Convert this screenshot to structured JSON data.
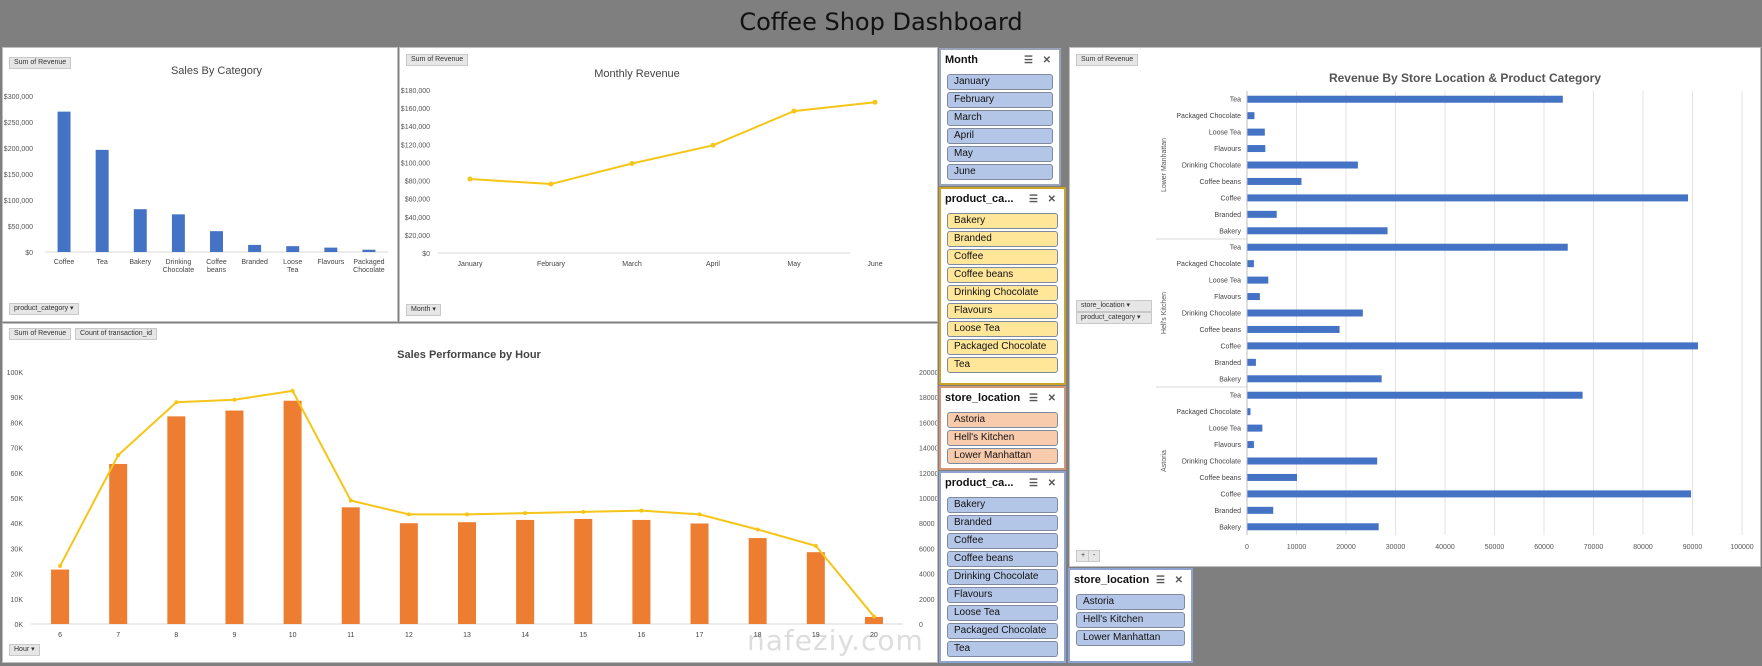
{
  "dashboard": {
    "title": "Coffee Shop Dashboard"
  },
  "colors": {
    "blue_bar": "#4472c4",
    "orange_bar": "#ed7d31",
    "line": "#f5c518",
    "slicer_blue": "#b4c6e7",
    "slicer_yellow": "#ffe699",
    "slicer_orange": "#f8cbad"
  },
  "sales_by_category": {
    "field_button": "Sum of Revenue",
    "axis_button": "product_category",
    "chart_data": {
      "type": "bar",
      "title": "Sales By Category",
      "categories": [
        "Coffee",
        "Tea",
        "Bakery",
        "Drinking Chocolate",
        "Coffee beans",
        "Branded",
        "Loose Tea",
        "Flavours",
        "Packaged Chocolate"
      ],
      "values": [
        269952,
        196406,
        82316,
        72417,
        40085,
        13607,
        11213,
        8409,
        4408
      ],
      "ylim": [
        0,
        300000
      ],
      "yticks": [
        "$0",
        "$50,000",
        "$100,000",
        "$150,000",
        "$200,000",
        "$250,000",
        "$300,000"
      ]
    }
  },
  "monthly_revenue": {
    "field_button": "Sum of Revenue",
    "axis_button": "Month",
    "chart_data": {
      "type": "line",
      "title": "Monthly Revenue",
      "categories": [
        "January",
        "February",
        "March",
        "April",
        "May",
        "June"
      ],
      "values": [
        81678,
        76145,
        98835,
        118941,
        156728,
        166486
      ],
      "ylim": [
        0,
        180000
      ],
      "yticks": [
        "$0",
        "$20,000",
        "$40,000",
        "$60,000",
        "$80,000",
        "$100,000",
        "$120,000",
        "$140,000",
        "$160,000",
        "$180,000"
      ]
    }
  },
  "sales_by_hour": {
    "field_buttons": [
      "Sum of Revenue",
      "Count of transaction_id"
    ],
    "axis_button": "Hour",
    "chart_data": {
      "type": "bar",
      "title": "Sales Performance by Hour",
      "categories": [
        "6",
        "7",
        "8",
        "9",
        "10",
        "11",
        "12",
        "13",
        "14",
        "15",
        "16",
        "17",
        "18",
        "19",
        "20"
      ],
      "series": [
        {
          "values": [
            21600,
            63500,
            82400,
            84700,
            88600,
            46300,
            40000,
            40400,
            41300,
            41700,
            41300,
            39900,
            34100,
            28500,
            2800
          ]
        },
        {
          "values": [
            4600,
            13400,
            17600,
            17800,
            18500,
            9800,
            8700,
            8700,
            8800,
            8900,
            9000,
            8700,
            7500,
            6200,
            600
          ]
        }
      ],
      "ylim_left": [
        0,
        100000
      ],
      "ylim_right": [
        0,
        20000
      ],
      "yticks_left": [
        "0K",
        "10K",
        "20K",
        "30K",
        "40K",
        "50K",
        "60K",
        "70K",
        "80K",
        "90K",
        "100K"
      ],
      "yticks_right": [
        "0",
        "2000",
        "4000",
        "6000",
        "8000",
        "10000",
        "12000",
        "14000",
        "16000",
        "18000",
        "20000"
      ]
    }
  },
  "store_category": {
    "field_button": "Sum of Revenue",
    "row_buttons": [
      "store_location",
      "product_category"
    ],
    "expand_buttons": [
      "+",
      "-"
    ],
    "chart_data": {
      "type": "bar",
      "title": "Revenue By Store Location & Product Category",
      "groups": [
        {
          "name": "Lower Manhattan",
          "categories": [
            "Tea",
            "Packaged Chocolate",
            "Loose Tea",
            "Flavours",
            "Drinking Chocolate",
            "Coffee beans",
            "Coffee",
            "Branded",
            "Bakery"
          ],
          "values": [
            63800,
            1500,
            3600,
            3700,
            22400,
            11000,
            89100,
            6000,
            28400
          ]
        },
        {
          "name": "Hell's Kitchen",
          "categories": [
            "Tea",
            "Packaged Chocolate",
            "Loose Tea",
            "Flavours",
            "Drinking Chocolate",
            "Coffee beans",
            "Coffee",
            "Branded",
            "Bakery"
          ],
          "values": [
            64800,
            1400,
            4300,
            2600,
            23400,
            18700,
            91100,
            1800,
            27200
          ]
        },
        {
          "name": "Astoria",
          "categories": [
            "Tea",
            "Packaged Chocolate",
            "Loose Tea",
            "Flavours",
            "Drinking Chocolate",
            "Coffee beans",
            "Coffee",
            "Branded",
            "Bakery"
          ],
          "values": [
            67800,
            700,
            3100,
            1400,
            26300,
            10100,
            89700,
            5300,
            26600
          ]
        }
      ],
      "xlim": [
        0,
        100000
      ],
      "xticks": [
        "0",
        "10000",
        "20000",
        "30000",
        "40000",
        "50000",
        "60000",
        "70000",
        "80000",
        "90000",
        "100000"
      ]
    }
  },
  "slicers": {
    "month": {
      "title": "Month",
      "items": [
        "January",
        "February",
        "March",
        "April",
        "May",
        "June"
      ]
    },
    "category_a": {
      "title": "product_ca...",
      "items": [
        "Bakery",
        "Branded",
        "Coffee",
        "Coffee beans",
        "Drinking Chocolate",
        "Flavours",
        "Loose Tea",
        "Packaged Chocolate",
        "Tea"
      ]
    },
    "store_a": {
      "title": "store_location",
      "items": [
        "Astoria",
        "Hell's Kitchen",
        "Lower Manhattan"
      ]
    },
    "category_b": {
      "title": "product_ca...",
      "items": [
        "Bakery",
        "Branded",
        "Coffee",
        "Coffee beans",
        "Drinking Chocolate",
        "Flavours",
        "Loose Tea",
        "Packaged Chocolate",
        "Tea"
      ]
    },
    "store_b": {
      "title": "store_location",
      "items": [
        "Astoria",
        "Hell's Kitchen",
        "Lower Manhattan"
      ]
    }
  },
  "watermark": {
    "text": "nafeziy.com"
  }
}
